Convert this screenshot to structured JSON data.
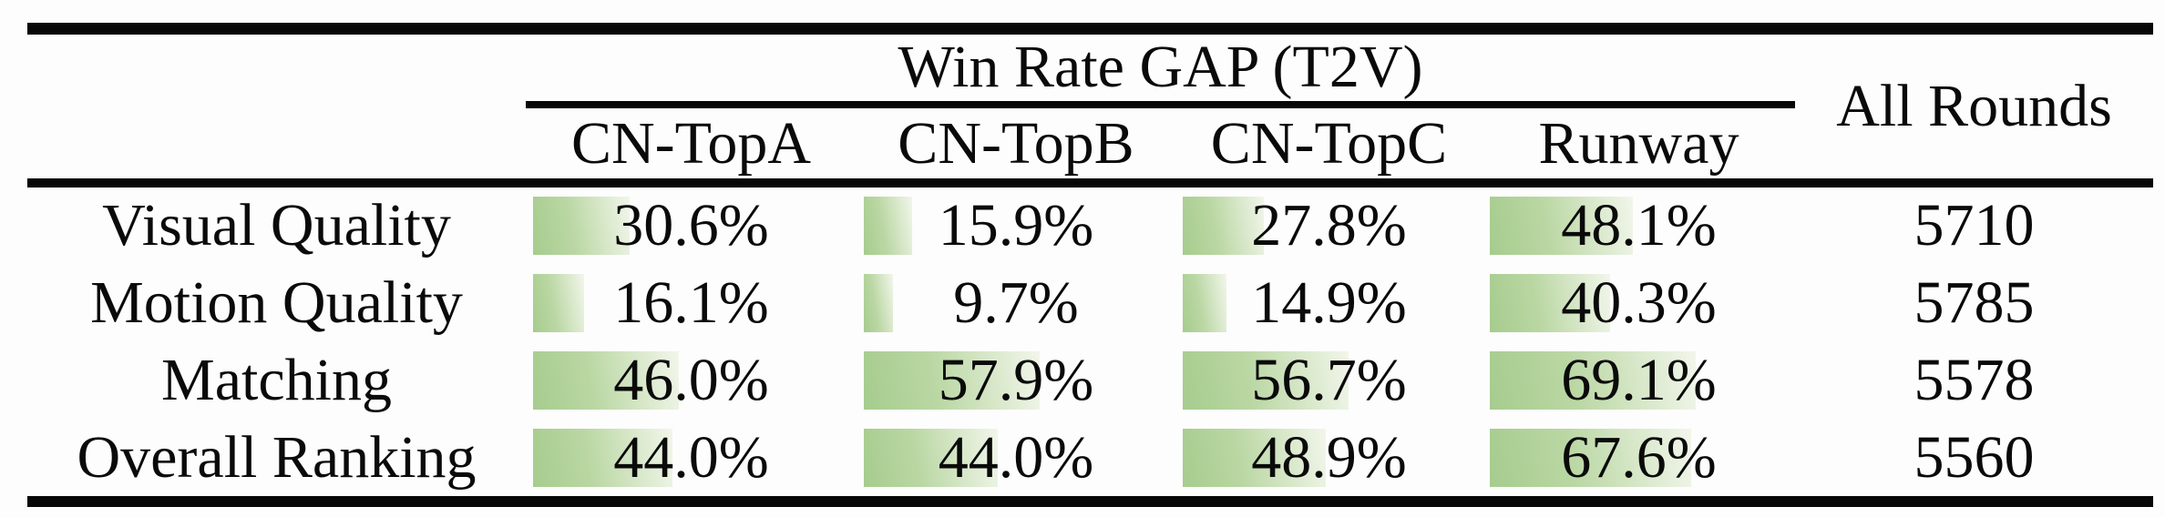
{
  "table": {
    "group_header": "Win Rate GAP (T2V)",
    "all_rounds_header": "All Rounds",
    "columns": [
      "CN-TopA",
      "CN-TopB",
      "CN-TopC",
      "Runway"
    ],
    "rows": [
      {
        "label": "Visual Quality",
        "values": [
          30.6,
          15.9,
          27.8,
          48.1
        ],
        "display": [
          "30.6%",
          "15.9%",
          "27.8%",
          "48.1%"
        ],
        "all_rounds": "5710"
      },
      {
        "label": "Motion Quality",
        "values": [
          16.1,
          9.7,
          14.9,
          40.3
        ],
        "display": [
          "16.1%",
          "9.7%",
          "14.9%",
          "40.3%"
        ],
        "all_rounds": "5785"
      },
      {
        "label": "Matching",
        "values": [
          46.0,
          57.9,
          56.7,
          69.1
        ],
        "display": [
          "46.0%",
          "57.9%",
          "56.7%",
          "69.1%"
        ],
        "all_rounds": "5578"
      },
      {
        "label": "Overall Ranking",
        "values": [
          44.0,
          44.0,
          48.9,
          67.6
        ],
        "display": [
          "44.0%",
          "44.0%",
          "48.9%",
          "67.6%"
        ],
        "all_rounds": "5560"
      }
    ],
    "bar_color_start": "#a6cc8e",
    "bar_color_end": "#f2f6eb",
    "rule_color": "#070707"
  },
  "chart_data": {
    "type": "table",
    "title": "Win Rate GAP (T2V)",
    "categories": [
      "Visual Quality",
      "Motion Quality",
      "Matching",
      "Overall Ranking"
    ],
    "series": [
      {
        "name": "CN-TopA",
        "values": [
          30.6,
          16.1,
          46.0,
          44.0
        ]
      },
      {
        "name": "CN-TopB",
        "values": [
          15.9,
          9.7,
          57.9,
          44.0
        ]
      },
      {
        "name": "CN-TopC",
        "values": [
          27.8,
          14.9,
          56.7,
          48.9
        ]
      },
      {
        "name": "Runway",
        "values": [
          48.1,
          40.3,
          69.1,
          67.6
        ]
      },
      {
        "name": "All Rounds",
        "values": [
          5710,
          5785,
          5578,
          5560
        ]
      }
    ],
    "value_unit": "percent (win rate gap), All Rounds in counts",
    "bar_scale": "cell-embedded bars, 100% = full column width",
    "xlim": [
      0,
      100
    ]
  }
}
